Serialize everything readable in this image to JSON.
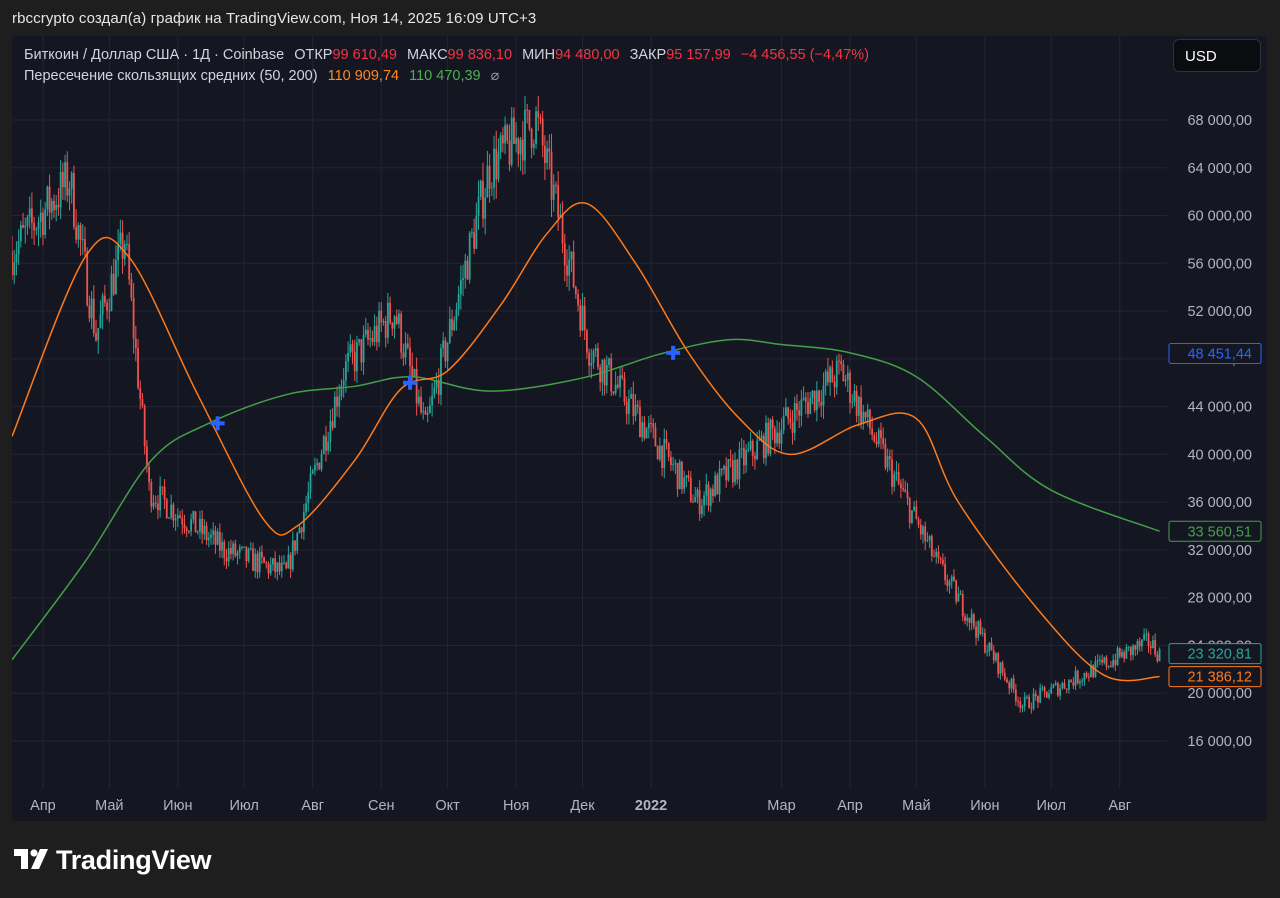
{
  "header": {
    "attribution": "rbccrypto создал(а) график на TradingView.com, Ноя 14, 2025 16:09 UTC+3"
  },
  "legend": {
    "symbol": "Биткоин / Доллар США · 1Д · Coinbase",
    "open_label": "ОТКР",
    "open_value": "99 610,49",
    "high_label": "МАКС",
    "high_value": "99 836,10",
    "low_label": "МИН",
    "low_value": "94 480,00",
    "close_label": "ЗАКР",
    "close_value": "95 157,99",
    "change": "−4 456,55 (−4,47%)",
    "indicator_name": "Пересечение скользящих средних (50, 200)",
    "ma50_value": "110 909,74",
    "ma200_value": "110 470,39",
    "visibility_symbol": "⌀"
  },
  "toolbar": {
    "currency_label": "USD"
  },
  "brand": {
    "name": "TradingView",
    "logo_icon": "tradingview-logo-icon"
  },
  "colors": {
    "background": "#141722",
    "up": "#26a69a",
    "down": "#ef5350",
    "ma50": "#ff7a1a",
    "ma200": "#43a047",
    "cross_marker": "#2962ff"
  },
  "chart_data": {
    "type": "candlestick",
    "series": [
      {
        "name": "Биткоин / Доллар США",
        "kind": "daily-candles",
        "approx_close_path": [
          [
            "2021-03-18",
            57000
          ],
          [
            "2021-04-13",
            63000
          ],
          [
            "2021-04-25",
            50000
          ],
          [
            "2021-05-08",
            58000
          ],
          [
            "2021-05-19",
            37000
          ],
          [
            "2021-06-22",
            32000
          ],
          [
            "2021-07-20",
            30000
          ],
          [
            "2021-08-15",
            47000
          ],
          [
            "2021-09-07",
            52000
          ],
          [
            "2021-09-21",
            42000
          ],
          [
            "2021-10-20",
            64000
          ],
          [
            "2021-11-10",
            68000
          ],
          [
            "2021-12-04",
            49000
          ],
          [
            "2022-01-22",
            36000
          ],
          [
            "2022-03-28",
            47000
          ],
          [
            "2022-05-10",
            31000
          ],
          [
            "2022-06-18",
            19000
          ],
          [
            "2022-08-14",
            24300
          ],
          [
            "2022-08-19",
            23320.81
          ]
        ]
      },
      {
        "name": "MA 50",
        "values": [
          [
            "2021-03-18",
            41500
          ],
          [
            "2021-04-20",
            56500
          ],
          [
            "2021-05-10",
            56500
          ],
          [
            "2021-06-10",
            45000
          ],
          [
            "2021-07-10",
            34500
          ],
          [
            "2021-07-25",
            34000
          ],
          [
            "2021-08-20",
            39500
          ],
          [
            "2021-09-10",
            45500
          ],
          [
            "2021-10-01",
            47000
          ],
          [
            "2021-10-25",
            52500
          ],
          [
            "2021-11-15",
            58500
          ],
          [
            "2021-12-03",
            61000
          ],
          [
            "2021-12-25",
            56000
          ],
          [
            "2022-01-18",
            48500
          ],
          [
            "2022-02-10",
            43000
          ],
          [
            "2022-03-05",
            40000
          ],
          [
            "2022-04-05",
            42500
          ],
          [
            "2022-05-01",
            43000
          ],
          [
            "2022-05-20",
            36000
          ],
          [
            "2022-06-25",
            27000
          ],
          [
            "2022-07-25",
            21500
          ],
          [
            "2022-08-19",
            21386.12
          ]
        ]
      },
      {
        "name": "MA 200",
        "values": [
          [
            "2021-03-18",
            22800
          ],
          [
            "2021-04-20",
            31000
          ],
          [
            "2021-05-20",
            39500
          ],
          [
            "2021-06-15",
            42600
          ],
          [
            "2021-07-20",
            45000
          ],
          [
            "2021-08-20",
            45700
          ],
          [
            "2021-09-15",
            46500
          ],
          [
            "2021-10-20",
            45300
          ],
          [
            "2021-12-01",
            46400
          ],
          [
            "2022-01-05",
            48400
          ],
          [
            "2022-02-05",
            49600
          ],
          [
            "2022-03-01",
            49200
          ],
          [
            "2022-04-01",
            48500
          ],
          [
            "2022-05-01",
            46500
          ],
          [
            "2022-06-01",
            41500
          ],
          [
            "2022-07-01",
            37000
          ],
          [
            "2022-08-19",
            33560.51
          ]
        ]
      }
    ],
    "crossovers": [
      {
        "date": "2021-06-19",
        "value": 42600
      },
      {
        "date": "2021-09-14",
        "value": 46000
      },
      {
        "date": "2022-01-11",
        "value": 48500
      }
    ],
    "price_labels": [
      {
        "text": "48 451,44",
        "value": 48451.44,
        "color": "#2962ff"
      },
      {
        "text": "33 560,51",
        "value": 33560.51,
        "color": "#43a047"
      },
      {
        "text": "23 320,81",
        "value": 23320.81,
        "color": "#26a69a"
      },
      {
        "text": "21 386,12",
        "value": 21386.12,
        "color": "#ff7a1a"
      }
    ],
    "x_ticks": [
      {
        "label": "Апр",
        "date": "2021-04-01",
        "bold": false
      },
      {
        "label": "Май",
        "date": "2021-05-01",
        "bold": false
      },
      {
        "label": "Июн",
        "date": "2021-06-01",
        "bold": false
      },
      {
        "label": "Июл",
        "date": "2021-07-01",
        "bold": false
      },
      {
        "label": "Авг",
        "date": "2021-08-01",
        "bold": false
      },
      {
        "label": "Сен",
        "date": "2021-09-01",
        "bold": false
      },
      {
        "label": "Окт",
        "date": "2021-10-01",
        "bold": false
      },
      {
        "label": "Ноя",
        "date": "2021-11-01",
        "bold": false
      },
      {
        "label": "Дек",
        "date": "2021-12-01",
        "bold": false
      },
      {
        "label": "2022",
        "date": "2022-01-01",
        "bold": true
      },
      {
        "label": "Мар",
        "date": "2022-03-01",
        "bold": false
      },
      {
        "label": "Апр",
        "date": "2022-04-01",
        "bold": false
      },
      {
        "label": "Май",
        "date": "2022-05-01",
        "bold": false
      },
      {
        "label": "Июн",
        "date": "2022-06-01",
        "bold": false
      },
      {
        "label": "Июл",
        "date": "2022-07-01",
        "bold": false
      },
      {
        "label": "Авг",
        "date": "2022-08-01",
        "bold": false
      }
    ],
    "y_ticks": [
      {
        "label": "16 000,00",
        "value": 16000
      },
      {
        "label": "20 000,00",
        "value": 20000
      },
      {
        "label": "24 000,00",
        "value": 24000
      },
      {
        "label": "28 000,00",
        "value": 28000
      },
      {
        "label": "32 000,00",
        "value": 32000
      },
      {
        "label": "36 000,00",
        "value": 36000
      },
      {
        "label": "40 000,00",
        "value": 40000
      },
      {
        "label": "44 000,00",
        "value": 44000
      },
      {
        "label": "48 000,00",
        "value": 48000
      },
      {
        "label": "52 000,00",
        "value": 52000
      },
      {
        "label": "56 000,00",
        "value": 56000
      },
      {
        "label": "60 000,00",
        "value": 60000
      },
      {
        "label": "64 000,00",
        "value": 64000
      },
      {
        "label": "68 000,00",
        "value": 68000
      }
    ],
    "x_range": [
      "2021-03-18",
      "2022-08-21"
    ],
    "y_range": [
      12000,
      72000
    ],
    "grid": true
  }
}
